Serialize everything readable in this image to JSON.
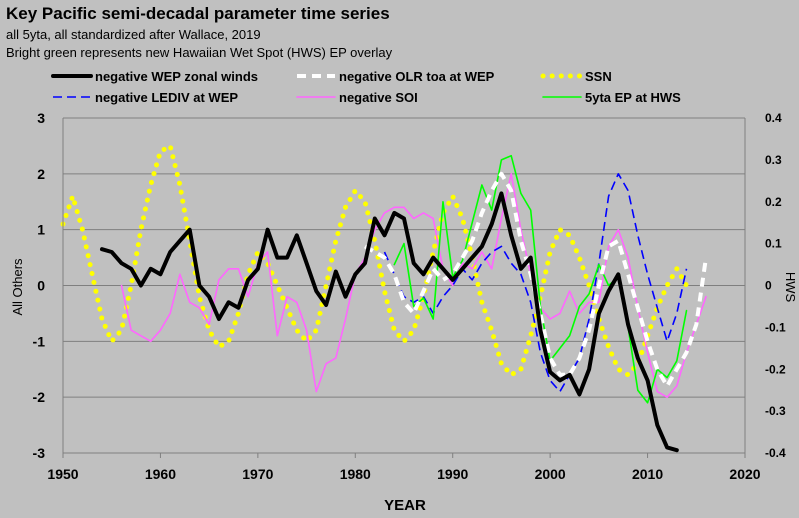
{
  "chart_data": {
    "type": "line",
    "title": "Key Pacific semi-decadal  parameter time series",
    "subtitle_1": "all 5yta, all standardized after Wallace, 2019",
    "subtitle_2": "Bright green represents new Hawaiian Wet Spot (HWS) EP overlay",
    "xlabel": "YEAR",
    "ylabel_left": "All Others",
    "ylabel_right": "HWS",
    "xlim": [
      1950,
      2020
    ],
    "ylim_left": [
      -3,
      3
    ],
    "ylim_right": [
      -0.4,
      0.4
    ],
    "x_ticks": [
      "1950",
      "1960",
      "1970",
      "1980",
      "1990",
      "2000",
      "2010",
      "2020"
    ],
    "y_ticks_left": [
      "3",
      "2",
      "1",
      "0",
      "-1",
      "-2",
      "-3"
    ],
    "y_ticks_right": [
      "0.4",
      "0.3",
      "0.2",
      "0.1",
      "0",
      "-0.1",
      "-0.2",
      "-0.3",
      "-0.4"
    ],
    "grid": true,
    "legend_placement": "top",
    "series": [
      {
        "name": "negative WEP zonal winds",
        "color": "#000000",
        "axis": "left",
        "style": "solid-thick",
        "x": [
          1954,
          1955,
          1956,
          1957,
          1958,
          1959,
          1960,
          1961,
          1962,
          1963,
          1964,
          1965,
          1966,
          1967,
          1968,
          1969,
          1970,
          1971,
          1972,
          1973,
          1974,
          1975,
          1976,
          1977,
          1978,
          1979,
          1980,
          1981,
          1982,
          1983,
          1984,
          1985,
          1986,
          1987,
          1988,
          1989,
          1990,
          1991,
          1992,
          1993,
          1994,
          1995,
          1996,
          1997,
          1998,
          1999,
          2000,
          2001,
          2002,
          2003,
          2004,
          2005,
          2006,
          2007,
          2008,
          2009,
          2010,
          2011,
          2012,
          2013
        ],
        "y": [
          0.65,
          0.6,
          0.4,
          0.3,
          0.0,
          0.3,
          0.2,
          0.6,
          0.8,
          1.0,
          0.0,
          -0.2,
          -0.6,
          -0.3,
          -0.4,
          0.1,
          0.3,
          1.0,
          0.5,
          0.5,
          0.9,
          0.4,
          -0.1,
          -0.35,
          0.25,
          -0.2,
          0.2,
          0.4,
          1.2,
          0.9,
          1.3,
          1.2,
          0.4,
          0.2,
          0.5,
          0.3,
          0.1,
          0.3,
          0.5,
          0.7,
          1.1,
          1.65,
          0.9,
          0.3,
          0.5,
          -0.8,
          -1.55,
          -1.7,
          -1.6,
          -1.95,
          -1.5,
          -0.5,
          -0.1,
          0.2,
          -0.7,
          -1.3,
          -1.7,
          -2.5,
          -2.9,
          -2.95
        ]
      },
      {
        "name": "negative OLR toa at WEP",
        "color": "#ffffff",
        "axis": "left",
        "style": "dashed-thick",
        "x": [
          1981,
          1982,
          1983,
          1984,
          1985,
          1986,
          1987,
          1988,
          1989,
          1990,
          1991,
          1992,
          1993,
          1994,
          1995,
          1996,
          1997,
          1998,
          1999,
          2000,
          2001,
          2002,
          2003,
          2004,
          2005,
          2006,
          2007,
          2008,
          2009,
          2010,
          2011,
          2012,
          2013,
          2014,
          2015,
          2016
        ],
        "y": [
          0.7,
          0.6,
          0.5,
          0.2,
          -0.3,
          -0.5,
          -0.1,
          0.3,
          0.1,
          0.2,
          0.5,
          0.8,
          1.3,
          1.7,
          2.0,
          1.7,
          0.8,
          0.2,
          -0.5,
          -1.3,
          -1.6,
          -1.6,
          -1.3,
          -0.8,
          0.0,
          0.7,
          0.8,
          0.2,
          -0.4,
          -1.0,
          -1.5,
          -1.8,
          -1.5,
          -1.2,
          -0.7,
          0.5
        ]
      },
      {
        "name": "SSN",
        "color": "#ffff00",
        "axis": "left",
        "style": "dotted",
        "x": [
          1950,
          1951,
          1952,
          1953,
          1954,
          1955,
          1956,
          1957,
          1958,
          1959,
          1960,
          1961,
          1962,
          1963,
          1964,
          1965,
          1966,
          1967,
          1968,
          1969,
          1970,
          1971,
          1972,
          1973,
          1974,
          1975,
          1976,
          1977,
          1978,
          1979,
          1980,
          1981,
          1982,
          1983,
          1984,
          1985,
          1986,
          1987,
          1988,
          1989,
          1990,
          1991,
          1992,
          1993,
          1994,
          1995,
          1996,
          1997,
          1998,
          1999,
          2000,
          2001,
          2002,
          2003,
          2004,
          2005,
          2006,
          2007,
          2008,
          2009,
          2010,
          2011,
          2012,
          2013,
          2014
        ],
        "y": [
          1.1,
          1.6,
          1.0,
          0.2,
          -0.6,
          -1.0,
          -0.8,
          0.0,
          1.0,
          1.8,
          2.4,
          2.5,
          1.8,
          0.8,
          -0.2,
          -0.8,
          -1.1,
          -1.0,
          -0.5,
          0.2,
          0.6,
          0.4,
          0.0,
          -0.4,
          -0.8,
          -1.0,
          -0.8,
          0.0,
          0.8,
          1.4,
          1.7,
          1.5,
          0.8,
          -0.1,
          -0.8,
          -1.0,
          -0.8,
          -0.2,
          0.6,
          1.3,
          1.6,
          1.2,
          0.5,
          -0.3,
          -0.8,
          -1.4,
          -1.6,
          -1.5,
          -0.9,
          -0.2,
          0.6,
          1.0,
          0.9,
          0.5,
          0.0,
          -0.6,
          -1.1,
          -1.5,
          -1.6,
          -1.4,
          -0.9,
          -0.4,
          0.0,
          0.3,
          0.0
        ]
      },
      {
        "name": "negative LEDIV at WEP",
        "color": "#0000ff",
        "axis": "left",
        "style": "dashed",
        "x": [
          1983,
          1984,
          1985,
          1986,
          1987,
          1988,
          1989,
          1990,
          1991,
          1992,
          1993,
          1994,
          1995,
          1996,
          1997,
          1998,
          1999,
          2000,
          2001,
          2002,
          2003,
          2004,
          2005,
          2006,
          2007,
          2008,
          2009,
          2010,
          2011,
          2012,
          2013,
          2014
        ],
        "y": [
          0.6,
          0.2,
          -0.2,
          -0.3,
          -0.2,
          -0.5,
          -0.2,
          0.0,
          0.3,
          0.1,
          0.4,
          0.6,
          0.7,
          0.4,
          0.2,
          -0.3,
          -1.2,
          -1.7,
          -1.9,
          -1.6,
          -1.3,
          -0.6,
          0.4,
          1.6,
          2.0,
          1.7,
          0.9,
          0.2,
          -0.4,
          -1.0,
          -0.5,
          0.3
        ]
      },
      {
        "name": "negative SOI",
        "color": "#ff66ff",
        "axis": "left",
        "style": "solid",
        "x": [
          1956,
          1957,
          1958,
          1959,
          1960,
          1961,
          1962,
          1963,
          1964,
          1965,
          1966,
          1967,
          1968,
          1969,
          1970,
          1971,
          1972,
          1973,
          1974,
          1975,
          1976,
          1977,
          1978,
          1979,
          1980,
          1981,
          1982,
          1983,
          1984,
          1985,
          1986,
          1987,
          1988,
          1989,
          1990,
          1991,
          1992,
          1993,
          1994,
          1995,
          1996,
          1997,
          1998,
          1999,
          2000,
          2001,
          2002,
          2003,
          2004,
          2005,
          2006,
          2007,
          2008,
          2009,
          2010,
          2011,
          2012,
          2013,
          2014,
          2015,
          2016
        ],
        "y": [
          0.0,
          -0.8,
          -0.9,
          -1.0,
          -0.8,
          -0.5,
          0.2,
          -0.3,
          -0.4,
          -0.7,
          0.1,
          0.3,
          0.3,
          -0.2,
          0.4,
          0.6,
          -0.9,
          -0.2,
          -0.3,
          -0.8,
          -1.9,
          -1.4,
          -1.3,
          -0.6,
          0.2,
          0.5,
          1.0,
          1.3,
          1.4,
          1.4,
          1.2,
          1.3,
          1.2,
          0.3,
          0.0,
          0.4,
          0.3,
          0.6,
          0.3,
          1.2,
          2.0,
          1.0,
          0.2,
          -0.4,
          -0.6,
          -0.5,
          -0.1,
          -0.5,
          -0.3,
          -0.3,
          0.7,
          1.0,
          0.5,
          -0.4,
          -1.2,
          -1.9,
          -2.0,
          -1.8,
          -1.2,
          -0.7,
          -0.2
        ]
      },
      {
        "name": "5yta EP at HWS",
        "color": "#00ff00",
        "axis": "right",
        "style": "solid",
        "x": [
          1984,
          1985,
          1986,
          1987,
          1988,
          1989,
          1990,
          1991,
          1992,
          1993,
          1994,
          1995,
          1996,
          1997,
          1998,
          1999,
          2000,
          2001,
          2002,
          2003,
          2004,
          2005,
          2006,
          2007,
          2008,
          2009,
          2010,
          2011,
          2012,
          2013,
          2014
        ],
        "y": [
          0.05,
          0.1,
          -0.05,
          -0.03,
          -0.08,
          0.2,
          0.02,
          0.06,
          0.15,
          0.24,
          0.18,
          0.3,
          0.31,
          0.22,
          0.18,
          -0.05,
          -0.18,
          -0.15,
          -0.12,
          -0.05,
          -0.02,
          0.05,
          0.0,
          0.02,
          -0.1,
          -0.25,
          -0.28,
          -0.2,
          -0.22,
          -0.18,
          -0.06
        ]
      }
    ]
  }
}
